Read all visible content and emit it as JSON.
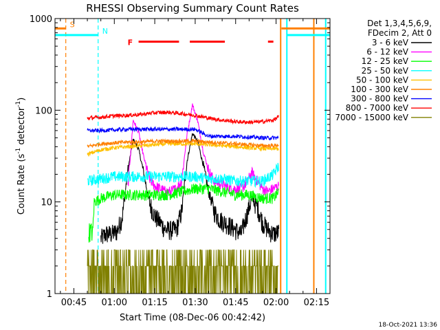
{
  "chart_data": {
    "type": "line",
    "title": "RHESSI Observing Summary Count Rates",
    "xlabel": "Start Time (08-Dec-06 00:42:42)",
    "ylabel_main": "Count Rate (s",
    "ylabel_sup1": "-1",
    "ylabel_mid": " detector",
    "ylabel_sup2": "-1",
    "ylabel_end": ")",
    "yscale": "log",
    "ylim": [
      1,
      1000
    ],
    "xlim_minutes": [
      -7,
      95
    ],
    "y_ticks": [
      {
        "value": 1,
        "label": "1"
      },
      {
        "value": 10,
        "label": "10"
      },
      {
        "value": 100,
        "label": "100"
      },
      {
        "value": 1000,
        "label": "1000"
      }
    ],
    "x_ticks": [
      {
        "minute": 0,
        "label": "00:45"
      },
      {
        "minute": 15,
        "label": "01:00"
      },
      {
        "minute": 30,
        "label": "01:15"
      },
      {
        "minute": 45,
        "label": "01:30"
      },
      {
        "minute": 60,
        "label": "01:45"
      },
      {
        "minute": 75,
        "label": "02:00"
      },
      {
        "minute": 90,
        "label": "02:15"
      }
    ],
    "legend_header": [
      "Det 1,3,4,5,6,9,",
      "FDecim 2, Att 0"
    ],
    "legend_placement": "right",
    "series": [
      {
        "name": "3 - 6 keV",
        "color": "#000000",
        "points": [
          [
            10,
            4
          ],
          [
            12,
            4.5
          ],
          [
            14,
            4.5
          ],
          [
            16,
            4.8
          ],
          [
            18,
            7
          ],
          [
            20,
            22
          ],
          [
            22,
            48
          ],
          [
            24,
            38
          ],
          [
            26,
            20
          ],
          [
            28,
            10
          ],
          [
            30,
            7
          ],
          [
            32,
            6
          ],
          [
            34,
            5
          ],
          [
            36,
            5
          ],
          [
            38,
            5
          ],
          [
            40,
            8
          ],
          [
            42,
            28
          ],
          [
            44,
            56
          ],
          [
            46,
            45
          ],
          [
            48,
            25
          ],
          [
            50,
            13
          ],
          [
            52,
            8
          ],
          [
            54,
            6.5
          ],
          [
            56,
            6
          ],
          [
            58,
            5.5
          ],
          [
            60,
            5
          ],
          [
            62,
            4.5
          ],
          [
            64,
            7
          ],
          [
            66,
            11
          ],
          [
            68,
            9
          ],
          [
            70,
            6
          ],
          [
            72,
            5
          ],
          [
            74,
            4.5
          ],
          [
            76,
            4.7
          ]
        ]
      },
      {
        "name": "6 - 12 keV",
        "color": "#ff00ff",
        "points": [
          [
            20,
            14
          ],
          [
            22,
            78
          ],
          [
            24,
            58
          ],
          [
            26,
            30
          ],
          [
            28,
            18
          ],
          [
            30,
            15
          ],
          [
            32,
            14
          ],
          [
            34,
            13
          ],
          [
            36,
            13
          ],
          [
            38,
            14
          ],
          [
            40,
            17
          ],
          [
            42,
            55
          ],
          [
            44,
            115
          ],
          [
            46,
            75
          ],
          [
            48,
            35
          ],
          [
            50,
            22
          ],
          [
            52,
            17
          ],
          [
            54,
            16
          ],
          [
            56,
            15
          ],
          [
            58,
            14
          ],
          [
            60,
            14
          ],
          [
            62,
            14
          ],
          [
            64,
            16
          ],
          [
            66,
            21
          ],
          [
            68,
            17
          ],
          [
            70,
            14
          ],
          [
            72,
            13
          ],
          [
            74,
            14
          ],
          [
            76,
            15
          ]
        ]
      },
      {
        "name": "12 - 25 keV",
        "color": "#00ff00",
        "points": [
          [
            5.5,
            4.8
          ],
          [
            6.5,
            4.8
          ],
          [
            7,
            4.5
          ],
          [
            7.5,
            10
          ],
          [
            10,
            11
          ],
          [
            15,
            12
          ],
          [
            20,
            12
          ],
          [
            25,
            12
          ],
          [
            30,
            12
          ],
          [
            35,
            12
          ],
          [
            40,
            13
          ],
          [
            45,
            14
          ],
          [
            50,
            14
          ],
          [
            55,
            13
          ],
          [
            60,
            12
          ],
          [
            65,
            12
          ],
          [
            70,
            11
          ],
          [
            74,
            11
          ],
          [
            76,
            13
          ]
        ]
      },
      {
        "name": "25 - 50 keV",
        "color": "#00ffff",
        "points": [
          [
            5,
            17
          ],
          [
            10,
            18
          ],
          [
            15,
            19
          ],
          [
            20,
            19
          ],
          [
            25,
            19
          ],
          [
            30,
            19
          ],
          [
            35,
            19
          ],
          [
            40,
            19
          ],
          [
            45,
            19
          ],
          [
            50,
            18
          ],
          [
            55,
            18
          ],
          [
            60,
            17
          ],
          [
            65,
            17
          ],
          [
            70,
            17
          ],
          [
            74,
            20
          ],
          [
            76,
            25
          ]
        ]
      },
      {
        "name": "50 - 100 keV",
        "color": "#ffc000",
        "points": [
          [
            5,
            33
          ],
          [
            10,
            37
          ],
          [
            15,
            39
          ],
          [
            20,
            40
          ],
          [
            25,
            41
          ],
          [
            30,
            42
          ],
          [
            35,
            43
          ],
          [
            40,
            43
          ],
          [
            45,
            43
          ],
          [
            50,
            42
          ],
          [
            55,
            41
          ],
          [
            60,
            40
          ],
          [
            65,
            39
          ],
          [
            70,
            38
          ],
          [
            74,
            38
          ],
          [
            76,
            38
          ]
        ]
      },
      {
        "name": "100 - 300 keV",
        "color": "#ff8000",
        "points": [
          [
            5,
            40
          ],
          [
            10,
            43
          ],
          [
            15,
            44
          ],
          [
            20,
            45
          ],
          [
            25,
            45
          ],
          [
            30,
            46
          ],
          [
            35,
            46
          ],
          [
            40,
            46
          ],
          [
            45,
            46
          ],
          [
            50,
            45
          ],
          [
            55,
            44
          ],
          [
            60,
            43
          ],
          [
            65,
            42
          ],
          [
            70,
            41
          ],
          [
            74,
            41
          ],
          [
            76,
            42
          ]
        ]
      },
      {
        "name": "300 - 800 keV",
        "color": "#0000ff",
        "points": [
          [
            5,
            60
          ],
          [
            10,
            60
          ],
          [
            15,
            61
          ],
          [
            20,
            62
          ],
          [
            25,
            62
          ],
          [
            30,
            62
          ],
          [
            35,
            62
          ],
          [
            40,
            62
          ],
          [
            45,
            62
          ],
          [
            50,
            52
          ],
          [
            55,
            52
          ],
          [
            60,
            52
          ],
          [
            65,
            51
          ],
          [
            70,
            50
          ],
          [
            74,
            50
          ],
          [
            76,
            50
          ]
        ]
      },
      {
        "name": "800 - 7000 keV",
        "color": "#ff0000",
        "points": [
          [
            5,
            82
          ],
          [
            10,
            84
          ],
          [
            15,
            87
          ],
          [
            20,
            88
          ],
          [
            25,
            90
          ],
          [
            30,
            94
          ],
          [
            35,
            95
          ],
          [
            40,
            92
          ],
          [
            45,
            88
          ],
          [
            50,
            82
          ],
          [
            55,
            78
          ],
          [
            60,
            75
          ],
          [
            65,
            74
          ],
          [
            70,
            75
          ],
          [
            74,
            78
          ],
          [
            76,
            85
          ]
        ]
      },
      {
        "name": "7000 - 15000 keV",
        "color": "#808000",
        "points": [
          [
            5,
            2
          ],
          [
            10,
            2
          ],
          [
            15,
            2
          ],
          [
            20,
            1.8
          ],
          [
            25,
            2
          ],
          [
            30,
            2
          ],
          [
            35,
            1.8
          ],
          [
            40,
            2
          ],
          [
            45,
            2
          ],
          [
            50,
            1.8
          ],
          [
            55,
            2
          ],
          [
            60,
            2
          ],
          [
            65,
            1.8
          ],
          [
            70,
            2
          ],
          [
            74,
            2
          ],
          [
            76,
            2
          ]
        ]
      }
    ],
    "attenuator_marks": [
      {
        "label": "S",
        "color": "#ff8000",
        "line_minute": -3,
        "bar": [
          [
            -7,
            -3
          ],
          [
            77,
            95
          ]
        ],
        "bar_y": 780
      },
      {
        "label": "N",
        "color": "#00ffff",
        "line_minute": 9,
        "bar": [
          [
            -7,
            9
          ],
          [
            79,
            95
          ]
        ],
        "bar_y": 660
      }
    ],
    "flare_flag": {
      "label": "F",
      "color": "#ff0000",
      "y": 560,
      "segments": [
        [
          24,
          39
        ],
        [
          43,
          56
        ],
        [
          72,
          74
        ]
      ]
    },
    "right_edge_lines": [
      {
        "minute": 76.7,
        "color": "#ff8000"
      },
      {
        "minute": 79,
        "color": "#00ffff"
      },
      {
        "minute": 89,
        "color": "#ff8000"
      },
      {
        "minute": 93.4,
        "color": "#00ffff"
      }
    ],
    "timestamp": "18-Oct-2021 13:36"
  }
}
